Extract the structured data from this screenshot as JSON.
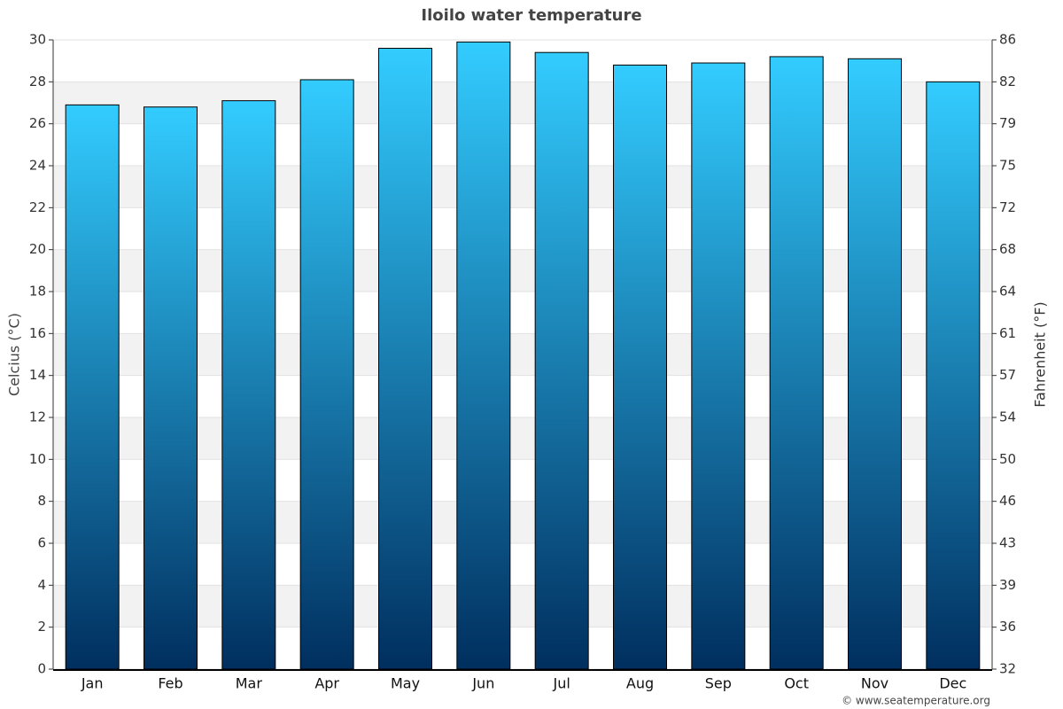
{
  "chart_data": {
    "type": "bar",
    "title": "Iloilo water temperature",
    "categories": [
      "Jan",
      "Feb",
      "Mar",
      "Apr",
      "May",
      "Jun",
      "Jul",
      "Aug",
      "Sep",
      "Oct",
      "Nov",
      "Dec"
    ],
    "values": [
      26.9,
      26.8,
      27.1,
      28.1,
      29.6,
      29.9,
      29.4,
      28.8,
      28.9,
      29.2,
      29.1,
      28.0
    ],
    "color": [
      "#33ccff",
      "#002f5f"
    ],
    "y_label": "Celcius (°C)",
    "y2_label": "Fahrenheit (°F)",
    "ylim": [
      0,
      30
    ],
    "yticks": [
      0,
      2,
      4,
      6,
      8,
      10,
      12,
      14,
      16,
      18,
      20,
      22,
      24,
      26,
      28,
      30
    ],
    "y2lim": [
      32,
      86
    ],
    "y2ticks": [
      32,
      {
        "value": 35.6,
        "label": "36"
      },
      {
        "value": 39.2,
        "label": "39"
      },
      {
        "value": 42.8,
        "label": "43"
      },
      {
        "value": 46.4,
        "label": "46"
      },
      50,
      {
        "value": 53.6,
        "label": "54"
      },
      {
        "value": 57.2,
        "label": "57"
      },
      {
        "value": 60.8,
        "label": "61"
      },
      {
        "value": 64.4,
        "label": "64"
      },
      68,
      {
        "value": 71.6,
        "label": "72"
      },
      {
        "value": 75.2,
        "label": "75"
      },
      {
        "value": 78.8,
        "label": "79"
      },
      {
        "value": 82.4,
        "label": "82"
      },
      86
    ],
    "grid": true,
    "credit": "© www.seatemperature.org"
  }
}
